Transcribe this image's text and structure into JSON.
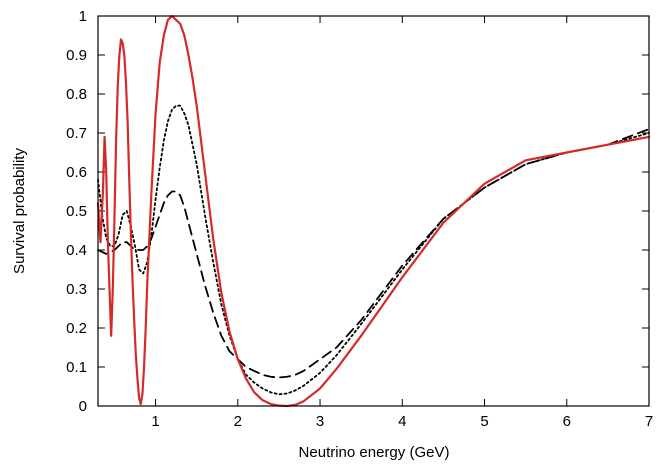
{
  "chart_data": {
    "type": "line",
    "title": "",
    "xlabel": "Neutrino energy (GeV)",
    "ylabel": "Survival probability",
    "xlim": [
      0.3,
      7
    ],
    "ylim": [
      0,
      1
    ],
    "xticks": [
      1,
      2,
      3,
      4,
      5,
      6,
      7
    ],
    "yticks": [
      0,
      0.1,
      0.2,
      0.3,
      0.4,
      0.5,
      0.6,
      0.7,
      0.8,
      0.9,
      1
    ],
    "grid": false,
    "legend": false,
    "series": [
      {
        "style": "solid",
        "color": "#d42a2a",
        "x": [
          0.3,
          0.33,
          0.36,
          0.38,
          0.4,
          0.42,
          0.44,
          0.46,
          0.48,
          0.5,
          0.52,
          0.54,
          0.56,
          0.58,
          0.6,
          0.62,
          0.64,
          0.66,
          0.68,
          0.7,
          0.72,
          0.74,
          0.76,
          0.78,
          0.8,
          0.82,
          0.84,
          0.86,
          0.88,
          0.9,
          0.95,
          1.0,
          1.05,
          1.1,
          1.15,
          1.2,
          1.25,
          1.3,
          1.35,
          1.4,
          1.45,
          1.5,
          1.6,
          1.7,
          1.8,
          1.9,
          2.0,
          2.1,
          2.2,
          2.3,
          2.4,
          2.5,
          2.6,
          2.7,
          2.8,
          3.0,
          3.2,
          3.5,
          4.0,
          4.5,
          5.0,
          5.5,
          6.0,
          6.5,
          7.0
        ],
        "y": [
          0.52,
          0.42,
          0.55,
          0.69,
          0.6,
          0.42,
          0.3,
          0.18,
          0.3,
          0.48,
          0.68,
          0.82,
          0.9,
          0.94,
          0.93,
          0.9,
          0.83,
          0.73,
          0.58,
          0.44,
          0.32,
          0.22,
          0.13,
          0.07,
          0.02,
          0.005,
          0.03,
          0.1,
          0.2,
          0.32,
          0.55,
          0.75,
          0.88,
          0.95,
          0.99,
          1.0,
          0.99,
          0.98,
          0.95,
          0.9,
          0.84,
          0.77,
          0.6,
          0.43,
          0.29,
          0.19,
          0.12,
          0.07,
          0.035,
          0.015,
          0.005,
          0.001,
          0.0,
          0.003,
          0.012,
          0.045,
          0.095,
          0.18,
          0.33,
          0.47,
          0.57,
          0.63,
          0.65,
          0.67,
          0.69
        ]
      },
      {
        "style": "dotted",
        "color": "#000000",
        "x": [
          0.3,
          0.35,
          0.4,
          0.45,
          0.5,
          0.55,
          0.6,
          0.65,
          0.7,
          0.75,
          0.8,
          0.85,
          0.9,
          0.95,
          1.0,
          1.05,
          1.1,
          1.15,
          1.2,
          1.25,
          1.3,
          1.35,
          1.4,
          1.5,
          1.6,
          1.7,
          1.8,
          1.9,
          2.0,
          2.1,
          2.2,
          2.3,
          2.4,
          2.5,
          2.6,
          2.7,
          2.8,
          3.0,
          3.2,
          3.5,
          4.0,
          4.5,
          5.0,
          5.5,
          6.0,
          6.5,
          7.0
        ],
        "y": [
          0.58,
          0.49,
          0.43,
          0.41,
          0.41,
          0.44,
          0.49,
          0.5,
          0.46,
          0.41,
          0.35,
          0.34,
          0.37,
          0.44,
          0.53,
          0.61,
          0.68,
          0.73,
          0.76,
          0.77,
          0.77,
          0.75,
          0.72,
          0.62,
          0.49,
          0.37,
          0.26,
          0.18,
          0.12,
          0.08,
          0.06,
          0.045,
          0.035,
          0.03,
          0.032,
          0.04,
          0.052,
          0.085,
          0.13,
          0.21,
          0.35,
          0.48,
          0.56,
          0.62,
          0.65,
          0.67,
          0.7
        ]
      },
      {
        "style": "dashed",
        "color": "#000000",
        "x": [
          0.3,
          0.4,
          0.5,
          0.55,
          0.6,
          0.65,
          0.7,
          0.75,
          0.8,
          0.85,
          0.9,
          0.95,
          1.0,
          1.05,
          1.1,
          1.15,
          1.2,
          1.25,
          1.3,
          1.35,
          1.4,
          1.5,
          1.6,
          1.7,
          1.8,
          1.9,
          2.0,
          2.1,
          2.2,
          2.3,
          2.4,
          2.5,
          2.6,
          2.7,
          2.8,
          3.0,
          3.2,
          3.5,
          4.0,
          4.5,
          5.0,
          5.5,
          6.0,
          6.5,
          7.0
        ],
        "y": [
          0.4,
          0.39,
          0.4,
          0.41,
          0.42,
          0.42,
          0.41,
          0.4,
          0.4,
          0.4,
          0.41,
          0.43,
          0.46,
          0.49,
          0.52,
          0.54,
          0.55,
          0.55,
          0.54,
          0.51,
          0.47,
          0.39,
          0.31,
          0.24,
          0.18,
          0.14,
          0.12,
          0.1,
          0.09,
          0.08,
          0.075,
          0.073,
          0.075,
          0.08,
          0.09,
          0.12,
          0.15,
          0.22,
          0.36,
          0.48,
          0.56,
          0.62,
          0.65,
          0.67,
          0.71
        ]
      }
    ]
  }
}
